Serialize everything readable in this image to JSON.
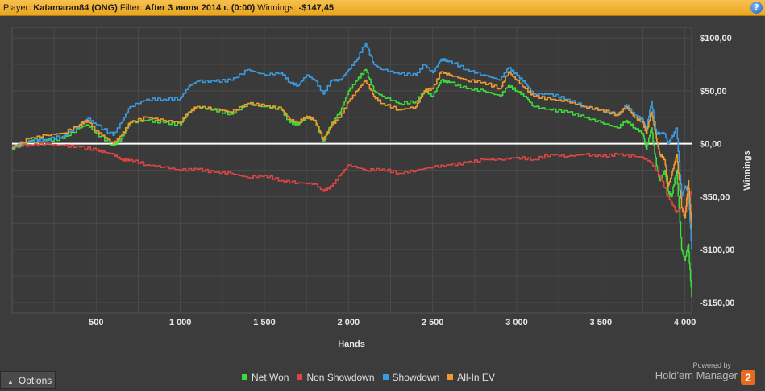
{
  "header": {
    "player_label": "Player:",
    "player_value": "Katamaran84 (ONG)",
    "filter_label": "Filter:",
    "filter_value": "After 3 июля 2014 г. (0:00)",
    "winnings_label": "Winnings:",
    "winnings_value": "-$147,45",
    "help_glyph": "?"
  },
  "options": {
    "label": "Options",
    "icon": "triangle-up-icon"
  },
  "branding": {
    "powered_by": "Powered by",
    "name": "Hold'em Manager",
    "badge": "2"
  },
  "chart_data": {
    "type": "line",
    "xlabel": "Hands",
    "ylabel": "Winnings",
    "xlim": [
      0,
      4040
    ],
    "ylim": [
      -160,
      110
    ],
    "x_ticks": [
      500,
      1000,
      1500,
      2000,
      2500,
      3000,
      3500,
      4000
    ],
    "x_tick_labels": [
      "500",
      "1 000",
      "1 500",
      "2 000",
      "2 500",
      "3 000",
      "3 500",
      "4 000"
    ],
    "y_ticks": [
      100,
      50,
      0,
      -50,
      -100,
      -150
    ],
    "y_tick_labels": [
      "$100,00",
      "$50,00",
      "$0,00",
      "-$50,00",
      "-$100,00",
      "-$150,00"
    ],
    "grid": true,
    "legend_position": "bottom",
    "series": [
      {
        "name": "Net Won",
        "color": "#3ddc3d",
        "x": [
          0,
          100,
          200,
          300,
          400,
          450,
          500,
          600,
          650,
          700,
          800,
          900,
          1000,
          1050,
          1100,
          1200,
          1300,
          1400,
          1500,
          1600,
          1650,
          1700,
          1750,
          1800,
          1850,
          1900,
          1950,
          2000,
          2050,
          2100,
          2150,
          2200,
          2300,
          2400,
          2450,
          2500,
          2550,
          2600,
          2700,
          2800,
          2900,
          2950,
          3000,
          3050,
          3100,
          3200,
          3300,
          3400,
          3500,
          3600,
          3650,
          3700,
          3750,
          3770,
          3800,
          3830,
          3850,
          3880,
          3900,
          3920,
          3950,
          3980,
          4000,
          4020,
          4040
        ],
        "y": [
          -5,
          2,
          3,
          5,
          15,
          18,
          10,
          -2,
          5,
          20,
          22,
          20,
          18,
          30,
          35,
          32,
          28,
          38,
          35,
          32,
          20,
          18,
          25,
          22,
          2,
          20,
          30,
          50,
          60,
          70,
          50,
          45,
          38,
          40,
          50,
          45,
          60,
          58,
          52,
          50,
          45,
          55,
          50,
          45,
          35,
          32,
          30,
          25,
          20,
          15,
          22,
          15,
          10,
          -5,
          15,
          -20,
          -35,
          -25,
          -45,
          -50,
          -25,
          -100,
          -110,
          -95,
          -145
        ]
      },
      {
        "name": "Non Showdown",
        "color": "#e04545",
        "x": [
          0,
          100,
          200,
          300,
          400,
          500,
          550,
          600,
          650,
          700,
          800,
          900,
          1000,
          1100,
          1200,
          1300,
          1400,
          1500,
          1600,
          1700,
          1800,
          1850,
          1900,
          1950,
          2000,
          2100,
          2200,
          2300,
          2400,
          2500,
          2600,
          2700,
          2800,
          2900,
          3000,
          3100,
          3200,
          3300,
          3400,
          3500,
          3600,
          3700,
          3750,
          3800,
          3850,
          3900,
          3950,
          3980,
          4000,
          4020,
          4040
        ],
        "y": [
          -2,
          -1,
          0,
          -2,
          -3,
          -6,
          -8,
          -10,
          -15,
          -15,
          -20,
          -22,
          -25,
          -24,
          -27,
          -28,
          -32,
          -30,
          -35,
          -37,
          -38,
          -45,
          -40,
          -30,
          -20,
          -25,
          -24,
          -28,
          -25,
          -22,
          -20,
          -18,
          -15,
          -15,
          -13,
          -15,
          -10,
          -12,
          -10,
          -12,
          -10,
          -12,
          -13,
          -18,
          -30,
          -50,
          -65,
          -60,
          -70,
          -50,
          -45
        ]
      },
      {
        "name": "Showdown",
        "color": "#3a9be0",
        "x": [
          0,
          100,
          200,
          300,
          400,
          450,
          500,
          600,
          650,
          700,
          800,
          900,
          1000,
          1050,
          1100,
          1200,
          1300,
          1400,
          1500,
          1600,
          1650,
          1700,
          1750,
          1800,
          1850,
          1900,
          1950,
          2000,
          2050,
          2100,
          2150,
          2200,
          2300,
          2400,
          2450,
          2500,
          2550,
          2600,
          2700,
          2800,
          2900,
          2950,
          3000,
          3050,
          3100,
          3200,
          3300,
          3400,
          3500,
          3600,
          3650,
          3700,
          3750,
          3770,
          3800,
          3830,
          3850,
          3880,
          3900,
          3920,
          3950,
          3980,
          4000,
          4020,
          4040
        ],
        "y": [
          -3,
          3,
          4,
          7,
          18,
          24,
          18,
          8,
          20,
          35,
          42,
          42,
          43,
          54,
          59,
          59,
          60,
          70,
          65,
          67,
          58,
          55,
          65,
          60,
          47,
          60,
          60,
          70,
          80,
          95,
          75,
          70,
          66,
          65,
          75,
          67,
          80,
          78,
          70,
          65,
          60,
          72,
          65,
          57,
          47,
          47,
          42,
          35,
          32,
          27,
          37,
          27,
          23,
          13,
          40,
          10,
          10,
          10,
          0,
          5,
          15,
          -50,
          -40,
          -45,
          -100
        ]
      },
      {
        "name": "All-In EV",
        "color": "#ef9b30",
        "x": [
          0,
          100,
          200,
          300,
          400,
          450,
          500,
          600,
          650,
          700,
          800,
          900,
          1000,
          1050,
          1100,
          1200,
          1300,
          1400,
          1500,
          1600,
          1650,
          1700,
          1750,
          1800,
          1850,
          1900,
          1950,
          2000,
          2050,
          2100,
          2150,
          2200,
          2300,
          2400,
          2450,
          2500,
          2550,
          2600,
          2700,
          2800,
          2900,
          2950,
          3000,
          3050,
          3100,
          3200,
          3300,
          3400,
          3500,
          3600,
          3650,
          3700,
          3750,
          3770,
          3800,
          3830,
          3850,
          3880,
          3900,
          3920,
          3950,
          3980,
          4000,
          4020,
          4040
        ],
        "y": [
          -4,
          5,
          8,
          10,
          18,
          22,
          12,
          0,
          8,
          20,
          25,
          22,
          20,
          30,
          35,
          33,
          30,
          38,
          36,
          33,
          23,
          20,
          26,
          22,
          4,
          18,
          25,
          40,
          50,
          60,
          45,
          38,
          32,
          35,
          50,
          52,
          68,
          65,
          60,
          58,
          52,
          68,
          60,
          52,
          45,
          42,
          40,
          35,
          32,
          27,
          35,
          25,
          20,
          10,
          30,
          5,
          -10,
          -15,
          -40,
          -30,
          -10,
          -60,
          -70,
          -35,
          -80
        ]
      }
    ]
  }
}
